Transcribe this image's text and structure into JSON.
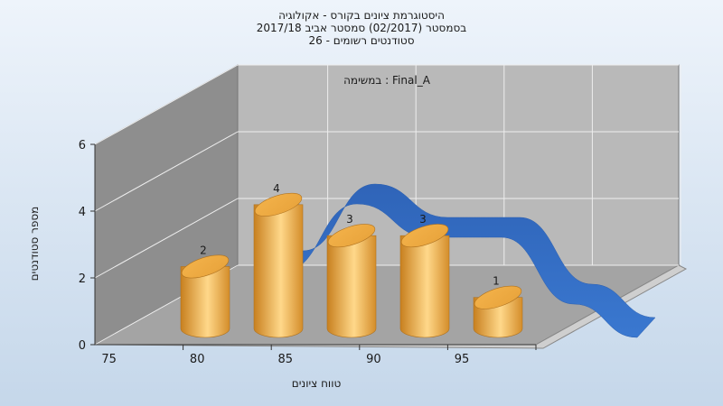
{
  "chart_data": {
    "type": "bar",
    "title_lines": [
      "היסטוגרמת ציונים בקורס - אקולוגיה",
      "בסמסטר  (02/2017)  סמסטר אביב 2017/18",
      "סטודנטים רשומים - 26"
    ],
    "ylabel": "מספר סטודנטים",
    "xlabel": "טווח ציונים",
    "annotation": "במשימה : Final_A",
    "x_ticks": [
      "75",
      "80",
      "85",
      "90",
      "95"
    ],
    "y_ticks": [
      "0",
      "2",
      "4",
      "6"
    ],
    "ylim": [
      0,
      6
    ],
    "bar_values": [
      2,
      4,
      3,
      3,
      1
    ],
    "grid": true,
    "colors": {
      "bar": "#e8a33b",
      "bar_highlight": "#ffd88a",
      "curve": "#3a78d0",
      "back_wall": "#b9b9b9",
      "side_wall": "#8e8e8e"
    }
  }
}
